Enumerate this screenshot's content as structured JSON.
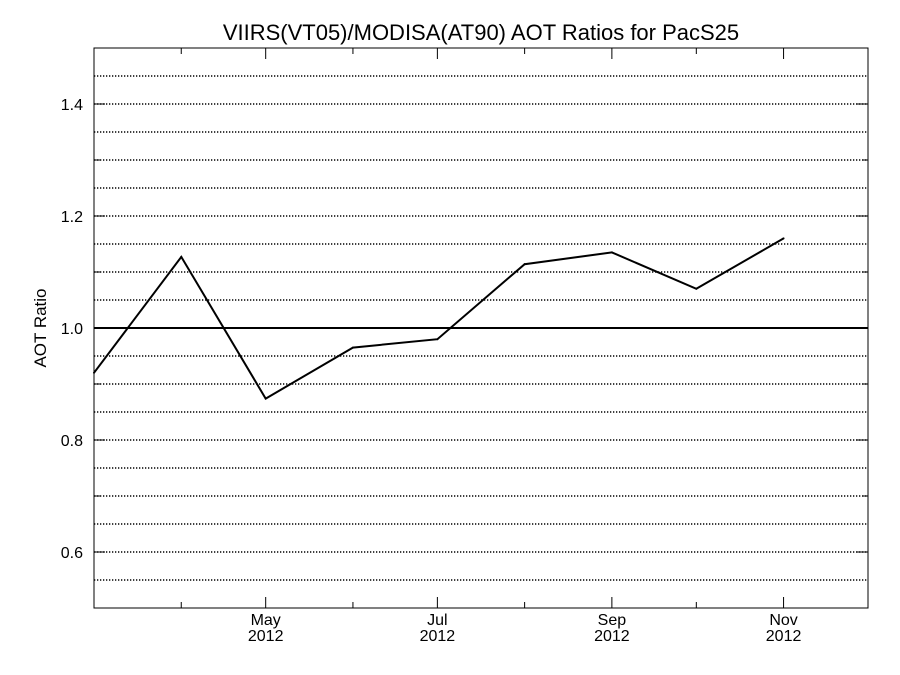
{
  "chart_data": {
    "type": "line",
    "title": "VIIRS(VT05)/MODISA(AT90)  AOT Ratios for PacS25",
    "xlabel": "",
    "ylabel": "AOT Ratio",
    "x": [
      "2012-03-01",
      "2012-04-01",
      "2012-05-01",
      "2012-06-01",
      "2012-07-01",
      "2012-08-01",
      "2012-09-01",
      "2012-10-01",
      "2012-11-01"
    ],
    "series": [
      {
        "values": [
          0.92,
          1.127,
          0.874,
          0.965,
          0.98,
          1.114,
          1.135,
          1.07,
          1.16
        ]
      }
    ],
    "reference_line": 1.0,
    "ylim": [
      0.5,
      1.5
    ],
    "xlim": [
      "2012-03-01",
      "2012-12-01"
    ],
    "y_ticks": [
      "0.6",
      "0.8",
      "1.0",
      "1.2",
      "1.4"
    ],
    "x_ticks": [
      {
        "date": "2012-05-01",
        "month": "May",
        "year": "2012"
      },
      {
        "date": "2012-07-01",
        "month": "Jul",
        "year": "2012"
      },
      {
        "date": "2012-09-01",
        "month": "Sep",
        "year": "2012"
      },
      {
        "date": "2012-11-01",
        "month": "Nov",
        "year": "2012"
      }
    ],
    "grid": "horizontal dotted every 0.05",
    "line_color": "#000000"
  }
}
